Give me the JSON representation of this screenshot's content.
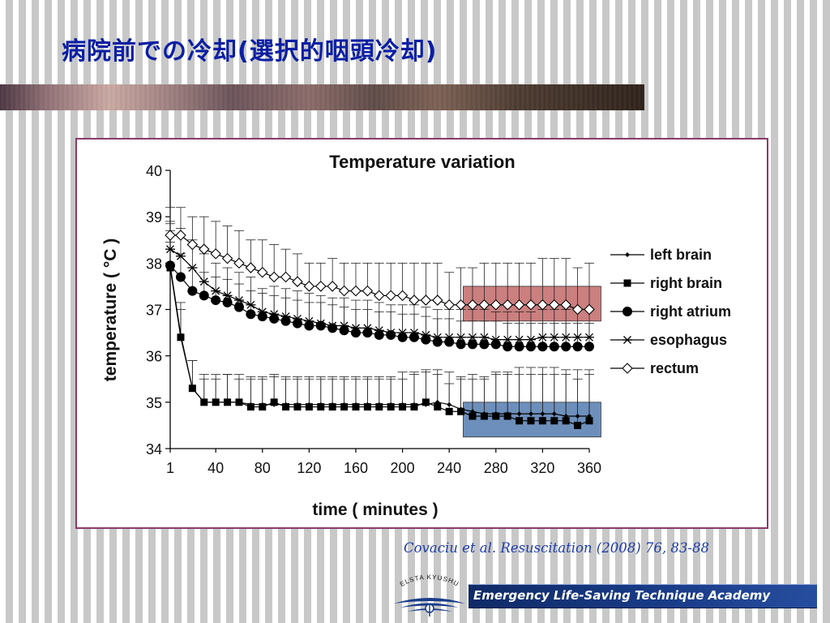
{
  "slide": {
    "title": "病院前での冷却(選択的咽頭冷却)",
    "citation": "Covaciu et al. Resuscitation (2008) 76, 83-88",
    "academy": "Emergency Life-Saving Technique Academy",
    "logo_text": "ELSTA KYUSHU",
    "colors": {
      "title": "#0a1fa3",
      "citation": "#1e3da8",
      "frame": "#8b3a6b",
      "band_dark": "#2c2018",
      "academy_bar": "#1a3d8a"
    }
  },
  "chart_data": {
    "type": "line",
    "title": "Temperature variation",
    "xlabel": "time ( minutes )",
    "ylabel": "temperature ( °C )",
    "xlim": [
      1,
      360
    ],
    "ylim": [
      34,
      40
    ],
    "x_ticks": [
      1,
      40,
      80,
      120,
      160,
      200,
      240,
      280,
      320,
      360
    ],
    "y_ticks": [
      34,
      35,
      36,
      37,
      38,
      39,
      40
    ],
    "grid": false,
    "legend_position": "right",
    "error_bars": "upper standard deviation caps",
    "x": [
      1,
      10,
      20,
      30,
      40,
      50,
      60,
      70,
      80,
      90,
      100,
      110,
      120,
      130,
      140,
      150,
      160,
      170,
      180,
      190,
      200,
      210,
      220,
      230,
      240,
      250,
      260,
      270,
      280,
      290,
      300,
      310,
      320,
      330,
      340,
      350,
      360
    ],
    "series": [
      {
        "name": "left brain",
        "marker": "small-diamond",
        "values": [
          37.95,
          36.45,
          35.3,
          35.0,
          35.0,
          35.0,
          35.0,
          34.95,
          34.95,
          34.95,
          34.95,
          34.95,
          34.95,
          34.95,
          34.95,
          34.95,
          34.95,
          34.95,
          34.95,
          34.95,
          34.95,
          34.95,
          34.95,
          35.0,
          34.95,
          34.85,
          34.8,
          34.75,
          34.75,
          34.75,
          34.75,
          34.75,
          34.75,
          34.75,
          34.7,
          34.7,
          34.7
        ],
        "error_upper": [
          0.9,
          0.7,
          0.6,
          0.6,
          0.6,
          0.6,
          0.6,
          0.6,
          0.6,
          0.6,
          0.6,
          0.6,
          0.6,
          0.6,
          0.6,
          0.6,
          0.6,
          0.6,
          0.6,
          0.6,
          0.7,
          0.7,
          0.7,
          0.7,
          0.7,
          0.7,
          0.8,
          0.8,
          0.9,
          0.9,
          1.0,
          1.0,
          1.0,
          1.0,
          1.0,
          1.0,
          1.0
        ]
      },
      {
        "name": "right brain",
        "marker": "square",
        "values": [
          37.9,
          36.4,
          35.3,
          35.0,
          35.0,
          35.0,
          35.0,
          34.9,
          34.9,
          35.0,
          34.9,
          34.9,
          34.9,
          34.9,
          34.9,
          34.9,
          34.9,
          34.9,
          34.9,
          34.9,
          34.9,
          34.9,
          35.0,
          34.9,
          34.8,
          34.8,
          34.7,
          34.7,
          34.7,
          34.7,
          34.6,
          34.6,
          34.6,
          34.6,
          34.6,
          34.5,
          34.6
        ],
        "error_upper": [
          0.8,
          0.6,
          0.6,
          0.5,
          0.5,
          0.6,
          0.5,
          0.6,
          0.6,
          0.6,
          0.6,
          0.6,
          0.6,
          0.6,
          0.6,
          0.6,
          0.6,
          0.6,
          0.6,
          0.6,
          0.6,
          0.7,
          0.7,
          0.7,
          0.6,
          0.7,
          0.8,
          0.8,
          0.9,
          0.9,
          1.0,
          1.0,
          1.0,
          1.0,
          1.0,
          1.0,
          1.0
        ]
      },
      {
        "name": "right atrium",
        "marker": "circle",
        "values": [
          37.95,
          37.7,
          37.4,
          37.3,
          37.2,
          37.15,
          37.05,
          36.9,
          36.85,
          36.8,
          36.75,
          36.7,
          36.65,
          36.65,
          36.6,
          36.55,
          36.5,
          36.5,
          36.45,
          36.45,
          36.4,
          36.4,
          36.35,
          36.3,
          36.3,
          36.25,
          36.25,
          36.25,
          36.25,
          36.2,
          36.2,
          36.2,
          36.2,
          36.2,
          36.2,
          36.2,
          36.2
        ],
        "error_upper": [
          0.5,
          0.5,
          0.5,
          0.5,
          0.5,
          0.5,
          0.5,
          0.5,
          0.5,
          0.5,
          0.5,
          0.5,
          0.5,
          0.5,
          0.5,
          0.5,
          0.5,
          0.5,
          0.5,
          0.5,
          0.5,
          0.5,
          0.5,
          0.5,
          0.5,
          0.5,
          0.5,
          0.5,
          0.5,
          0.5,
          0.5,
          0.5,
          0.5,
          0.5,
          0.5,
          0.5,
          0.5
        ]
      },
      {
        "name": "esophagus",
        "marker": "asterisk",
        "values": [
          38.3,
          38.15,
          37.9,
          37.6,
          37.4,
          37.3,
          37.2,
          37.1,
          36.95,
          36.9,
          36.85,
          36.8,
          36.75,
          36.7,
          36.65,
          36.65,
          36.6,
          36.6,
          36.55,
          36.5,
          36.5,
          36.5,
          36.45,
          36.4,
          36.4,
          36.4,
          36.4,
          36.4,
          36.35,
          36.35,
          36.35,
          36.35,
          36.4,
          36.4,
          36.4,
          36.4,
          36.4
        ],
        "error_upper": [
          0.6,
          0.6,
          0.6,
          0.6,
          0.6,
          0.6,
          0.6,
          0.6,
          0.5,
          0.6,
          0.6,
          0.6,
          0.6,
          0.6,
          0.6,
          0.6,
          0.6,
          0.6,
          0.6,
          0.6,
          0.6,
          0.6,
          0.6,
          0.6,
          0.6,
          0.6,
          0.6,
          0.6,
          0.6,
          0.6,
          0.6,
          0.6,
          0.6,
          0.6,
          0.6,
          0.6,
          0.6
        ]
      },
      {
        "name": "rectum",
        "marker": "open-diamond",
        "values": [
          38.6,
          38.6,
          38.4,
          38.3,
          38.2,
          38.1,
          38.0,
          37.9,
          37.8,
          37.7,
          37.7,
          37.6,
          37.5,
          37.5,
          37.5,
          37.4,
          37.4,
          37.4,
          37.3,
          37.3,
          37.3,
          37.2,
          37.2,
          37.2,
          37.1,
          37.1,
          37.1,
          37.1,
          37.1,
          37.1,
          37.1,
          37.1,
          37.1,
          37.1,
          37.1,
          37.0,
          37.0
        ],
        "error_upper": [
          0.6,
          0.6,
          0.6,
          0.7,
          0.7,
          0.7,
          0.7,
          0.6,
          0.7,
          0.7,
          0.6,
          0.6,
          0.5,
          0.5,
          0.6,
          0.6,
          0.6,
          0.6,
          0.7,
          0.7,
          0.7,
          0.8,
          0.8,
          0.8,
          0.7,
          0.8,
          0.8,
          0.9,
          0.9,
          0.9,
          0.9,
          0.9,
          1.0,
          1.0,
          1.0,
          0.9,
          1.0
        ]
      }
    ],
    "highlights": [
      {
        "name": "rectum-highlight",
        "x_range": [
          252,
          370
        ],
        "y_range": [
          36.75,
          37.5
        ],
        "color": "#b54848"
      },
      {
        "name": "brain-highlight",
        "x_range": [
          252,
          370
        ],
        "y_range": [
          34.25,
          35.0
        ],
        "color": "#2f5f9e"
      }
    ]
  }
}
